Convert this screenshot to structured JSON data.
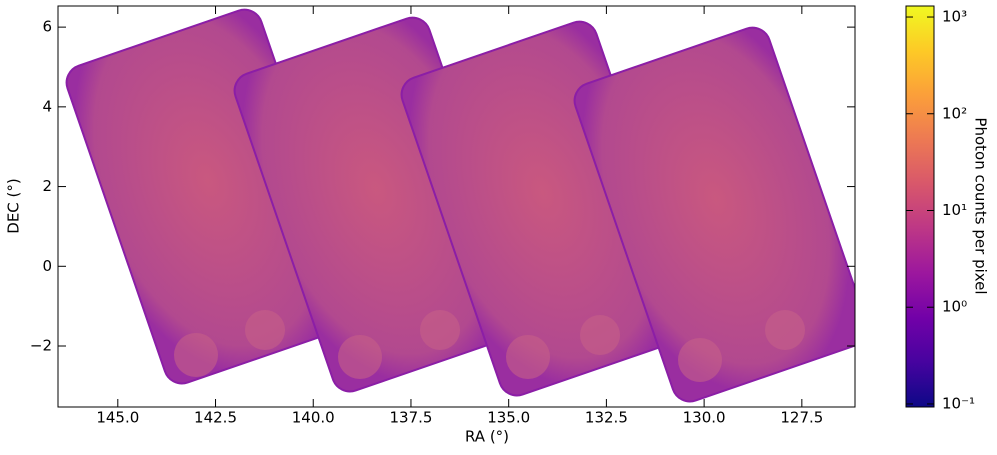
{
  "chart_data": {
    "type": "image",
    "xlabel": "RA (°)",
    "ylabel": "DEC (°)",
    "xlim": [
      146.53,
      126.14
    ],
    "ylim": [
      -3.53,
      6.53
    ],
    "xticks": [
      {
        "value": 145,
        "label": "145.0"
      },
      {
        "value": 142.5,
        "label": "142.5"
      },
      {
        "value": 140,
        "label": "140.0"
      },
      {
        "value": 137.5,
        "label": "137.5"
      },
      {
        "value": 135,
        "label": "135.0"
      },
      {
        "value": 132.5,
        "label": "132.5"
      },
      {
        "value": 130,
        "label": "130.0"
      },
      {
        "value": 127.5,
        "label": "127.5"
      }
    ],
    "yticks": [
      {
        "value": -2,
        "label": "−2"
      },
      0,
      2,
      4,
      6
    ],
    "colorbar": {
      "label": "Photon counts per pixel",
      "log_scale": true,
      "clim": [
        0.093,
        1300
      ],
      "ticks": [
        {
          "value": 0.1,
          "label": "10⁻¹"
        },
        {
          "value": 1,
          "label": "10⁰"
        },
        {
          "value": 10,
          "label": "10¹"
        },
        {
          "value": 100,
          "label": "10²"
        },
        {
          "value": 1000,
          "label": "10³"
        }
      ],
      "colormap": [
        "#0d0887",
        "#46039f",
        "#7201a8",
        "#9c179e",
        "#bd3786",
        "#d8576b",
        "#ed7953",
        "#fb9f3a",
        "#fdca26",
        "#f0f921"
      ]
    }
  }
}
